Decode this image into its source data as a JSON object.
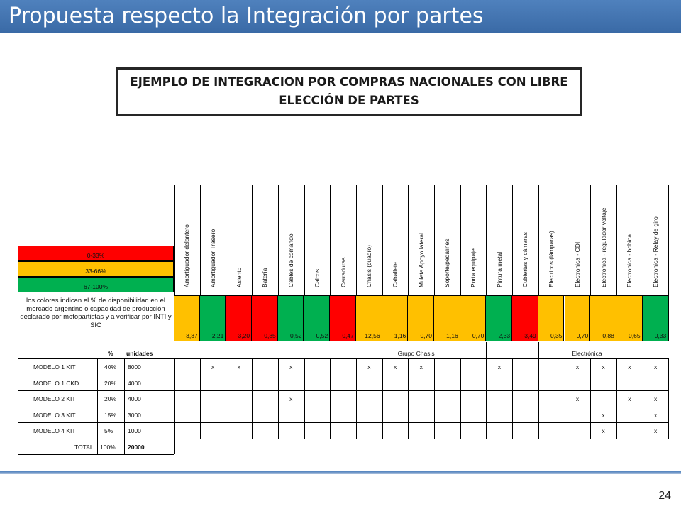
{
  "slide": {
    "title": "Propuesta respecto la Integración por partes",
    "example_box": "EJEMPLO DE INTEGRACION POR COMPRAS NACIONALES CON LIBRE ELECCIÓN DE PARTES",
    "page_number": "24"
  },
  "legend": [
    {
      "label": "0-33%",
      "color": "#ff0000"
    },
    {
      "label": "33-66%",
      "color": "#ffc000"
    },
    {
      "label": "67-100%",
      "color": "#00b050"
    }
  ],
  "note": "los colores indican el % de disponibilidad en el mercado argentino o capacidad de producción declarado por motopartistas y a verificar por INTI y SIC",
  "parts": [
    {
      "name": "Amortiguador delantero",
      "value": "3,37",
      "color": "#ffc000"
    },
    {
      "name": "Amortiguador Trasero",
      "value": "2,21",
      "color": "#00b050"
    },
    {
      "name": "Asiento",
      "value": "3,20",
      "color": "#ff0000"
    },
    {
      "name": "Batería",
      "value": "0,35",
      "color": "#ff0000"
    },
    {
      "name": "Cables de comando",
      "value": "0,52",
      "color": "#00b050"
    },
    {
      "name": "Calcos",
      "value": "0,52",
      "color": "#00b050"
    },
    {
      "name": "Cerraduras",
      "value": "0,47",
      "color": "#ff0000"
    },
    {
      "name": "Chasis (cuadro)",
      "value": "12,56",
      "color": "#ffc000"
    },
    {
      "name": "Caballete",
      "value": "1,16",
      "color": "#ffc000"
    },
    {
      "name": "Muleta Apoyo lateral",
      "value": "0,70",
      "color": "#ffc000"
    },
    {
      "name": "Soporte/pedalines",
      "value": "1,16",
      "color": "#ffc000"
    },
    {
      "name": "Porta equipaje",
      "value": "0,70",
      "color": "#ffc000"
    },
    {
      "name": "Pintura metal",
      "value": "2,33",
      "color": "#00b050"
    },
    {
      "name": "Cubiertas y cámaras",
      "value": "3,49",
      "color": "#ff0000"
    },
    {
      "name": "Electricos (lámparas)",
      "value": "0,35",
      "color": "#ffc000"
    },
    {
      "name": "Electronica - CDI",
      "value": "0,70",
      "color": "#ffc000"
    },
    {
      "name": "Electronica - regulador voltaje",
      "value": "0,88",
      "color": "#ffc000"
    },
    {
      "name": "Electronica - bobina",
      "value": "0,65",
      "color": "#ffc000"
    },
    {
      "name": "Electronica - Relay de giro",
      "value": "0,33",
      "color": "#00b050"
    }
  ],
  "table_headers": {
    "pct": "%",
    "units": "unidades",
    "group1": "Grupo Chasis",
    "group2": "Electrónica"
  },
  "models": [
    {
      "name": "MODELO 1 KIT",
      "pct": "40%",
      "units": "8000",
      "marks": [
        1,
        2,
        4,
        7,
        8,
        9,
        12,
        15,
        16,
        17,
        18
      ]
    },
    {
      "name": "MODELO 1 CKD",
      "pct": "20%",
      "units": "4000",
      "marks": []
    },
    {
      "name": "MODELO 2 KIT",
      "pct": "20%",
      "units": "4000",
      "marks": [
        4,
        15,
        17,
        18
      ]
    },
    {
      "name": "MODELO 3 KIT",
      "pct": "15%",
      "units": "3000",
      "marks": [
        16,
        18
      ]
    },
    {
      "name": "MODELO 4 KIT",
      "pct": "5%",
      "units": "1000",
      "marks": [
        16,
        18
      ]
    }
  ],
  "mark_symbol": "x",
  "total": {
    "label": "TOTAL",
    "pct": "100%",
    "units": "20000"
  }
}
